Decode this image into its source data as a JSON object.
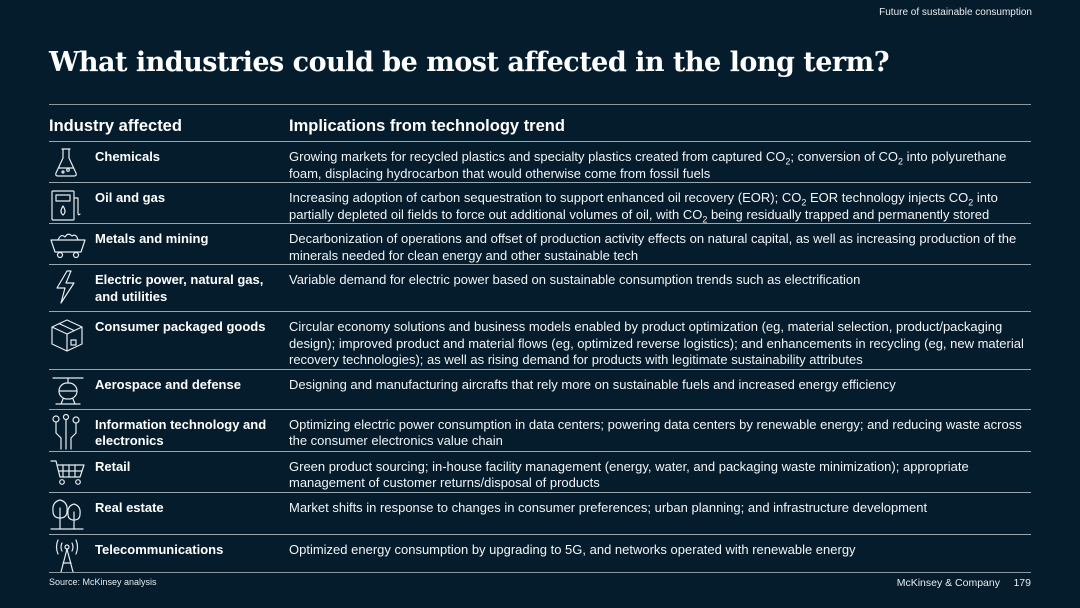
{
  "header": {
    "section_tag": "Future of sustainable consumption"
  },
  "title": "What industries could be most affected in the long term?",
  "columns": {
    "industry": "Industry affected",
    "implications": "Implications from technology trend"
  },
  "rows": [
    {
      "icon": "flask-icon",
      "industry": "Chemicals",
      "parts": [
        {
          "t": "Growing markets for recycled plastics and specialty plastics created from captured CO"
        },
        {
          "sub": "2"
        },
        {
          "t": "; conversion of CO"
        },
        {
          "sub": "2"
        },
        {
          "t": " into polyurethane foam, displacing hydrocarbon that would otherwise come from fossil fuels"
        }
      ]
    },
    {
      "icon": "fuel-pump-icon",
      "industry": "Oil and gas",
      "parts": [
        {
          "t": "Increasing adoption of carbon sequestration to support enhanced oil recovery (EOR); CO"
        },
        {
          "sub": "2"
        },
        {
          "t": " EOR technology injects CO"
        },
        {
          "sub": "2"
        },
        {
          "t": " into partially depleted oil fields to force out additional volumes of oil, with CO"
        },
        {
          "sub": "2"
        },
        {
          "t": " being residually trapped and permanently stored"
        }
      ]
    },
    {
      "icon": "mining-cart-icon",
      "industry": "Metals and mining",
      "parts": [
        {
          "t": "Decarbonization of operations and offset of production activity effects on natural capital, as well as increasing production of the minerals needed for clean energy and other sustainable tech"
        }
      ]
    },
    {
      "icon": "lightning-icon",
      "industry": "Electric power, natural gas, and utilities",
      "parts": [
        {
          "t": "Variable demand for electric power based on sustainable consumption trends such as electrification"
        }
      ]
    },
    {
      "icon": "package-box-icon",
      "industry": "Consumer packaged goods",
      "parts": [
        {
          "t": "Circular economy solutions and business models enabled by product optimization (eg, material selection, product/packaging design); improved product and material flows (eg, optimized reverse logistics); and enhancements in recycling (eg, new material recovery technologies); as well as rising demand for products with legitimate sustainability attributes"
        }
      ]
    },
    {
      "icon": "helicopter-icon",
      "industry": "Aerospace and defense",
      "parts": [
        {
          "t": "Designing and manufacturing aircrafts that rely more on sustainable fuels and increased energy efficiency"
        }
      ]
    },
    {
      "icon": "circuit-icon",
      "industry": "Information technology and electronics",
      "parts": [
        {
          "t": "Optimizing electric power consumption in data centers; powering data centers by renewable energy; and reducing waste across the consumer electronics value chain"
        }
      ]
    },
    {
      "icon": "shopping-cart-icon",
      "industry": "Retail",
      "parts": [
        {
          "t": "Green product sourcing; in-house facility management (energy, water, and packaging waste minimization); appropriate management of customer returns/disposal of products"
        }
      ]
    },
    {
      "icon": "trees-icon",
      "industry": "Real estate",
      "parts": [
        {
          "t": "Market shifts in response to changes in consumer preferences; urban planning; and infrastructure development"
        }
      ]
    },
    {
      "icon": "antenna-icon",
      "industry": "Telecommunications",
      "parts": [
        {
          "t": "Optimized energy consumption by upgrading to 5G, and networks operated with renewable energy"
        }
      ]
    }
  ],
  "footer": {
    "source": "Source: McKinsey analysis",
    "brand": "McKinsey & Company",
    "page": "179"
  },
  "colors": {
    "background": "#051c2c",
    "text": "#ffffff",
    "rule": "#9aa5ae"
  }
}
